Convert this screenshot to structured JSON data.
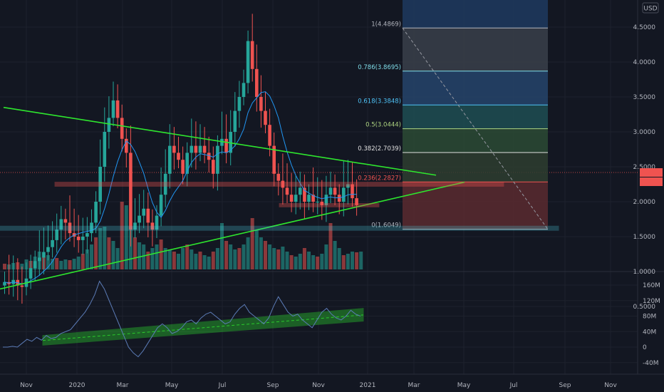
{
  "currency_button": "USD",
  "price_axis": [
    "4.5000",
    "4.0000",
    "3.5000",
    "3.0000",
    "2.5000",
    "2.0000",
    "1.5000",
    "1.0000",
    "0.5000"
  ],
  "oscillator_axis": [
    "160M",
    "120M",
    "80M",
    "40M",
    "0",
    "-40M"
  ],
  "time_axis": [
    "Nov",
    "2020",
    "Mar",
    "May",
    "Jul",
    "Sep",
    "Nov",
    "2021",
    "Mar",
    "May",
    "Jul",
    "Sep",
    "Nov"
  ],
  "current_price": "",
  "current_price_sub": "",
  "fib_levels": [
    {
      "label": "1(4.4869)",
      "value": 4.4869,
      "color": "#b2b5be"
    },
    {
      "label": "0.786(3.8695)",
      "value": 3.8695,
      "color": "#80deea"
    },
    {
      "label": "0.618(3.3848)",
      "value": 3.3848,
      "color": "#4fc3f7"
    },
    {
      "label": "0.5(3.0444)",
      "value": 3.0444,
      "color": "#aed581"
    },
    {
      "label": "0.382(2.7039)",
      "value": 2.7039,
      "color": "#e0e0e0"
    },
    {
      "label": "0.236(2.2827)",
      "value": 2.2827,
      "color": "#ef5350"
    },
    {
      "label": "0(1.6049)",
      "value": 1.6049,
      "color": "#b2b5be"
    }
  ],
  "colors": {
    "background": "#131722",
    "up": "#26a69a",
    "down": "#ef5350",
    "trendline": "#2ee62e",
    "ma": "#2196f3",
    "channel": "#2ee62e"
  }
}
